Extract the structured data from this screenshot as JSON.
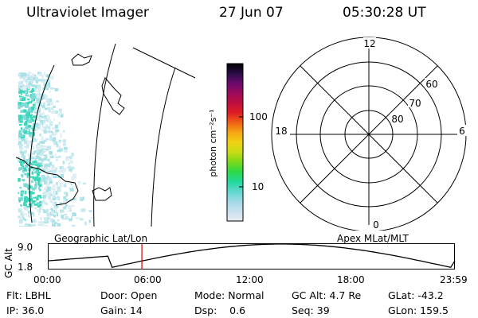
{
  "header": {
    "title": "Ultraviolet Imager",
    "date": "27 Jun 07",
    "time": "05:30:28 UT"
  },
  "colorbar": {
    "unit_label": "photon cm⁻²s⁻¹",
    "tick_labels": [
      "100",
      "10"
    ],
    "gradient_stops": [
      "#e8ecf2",
      "#c8e0ee",
      "#a0dae6",
      "#5ed8d0",
      "#22d89a",
      "#2ed846",
      "#7ad81a",
      "#c8dc14",
      "#f0d214",
      "#f7a414",
      "#ef6016",
      "#df1c24",
      "#be0e3e",
      "#9c0a5c",
      "#6c0a6c",
      "#280c46",
      "#000000"
    ]
  },
  "geographic_panel": {
    "label": "Geographic Lat/Lon",
    "aurora_color": "#3ad8b8"
  },
  "polar_panel": {
    "label": "Apex MLat/MLT",
    "mlt_labels": [
      "12",
      "18",
      "6",
      "0"
    ],
    "lat_labels": [
      "60",
      "70",
      "80"
    ]
  },
  "altitude_plot": {
    "ylabel": "GC Alt",
    "ytick_labels": [
      "9.0",
      "1.8"
    ],
    "xtick_labels": [
      "00:00",
      "06:00",
      "12:00",
      "18:00",
      "23:59"
    ],
    "current_time_marker_hours": 5.51,
    "marker_color": "#cc0000"
  },
  "footer": {
    "row1": {
      "flt": "Flt: LBHL",
      "door": "Door: Open",
      "mode": "Mode: Normal",
      "gcalt": "GC Alt: 4.7 Re",
      "glat": "GLat: -43.2"
    },
    "row2": {
      "ip": "IP: 36.0",
      "gain": "Gain: 14",
      "dsp": "Dsp:    0.6",
      "seq": "Seq: 39",
      "glon": "GLon: 159.5"
    }
  }
}
